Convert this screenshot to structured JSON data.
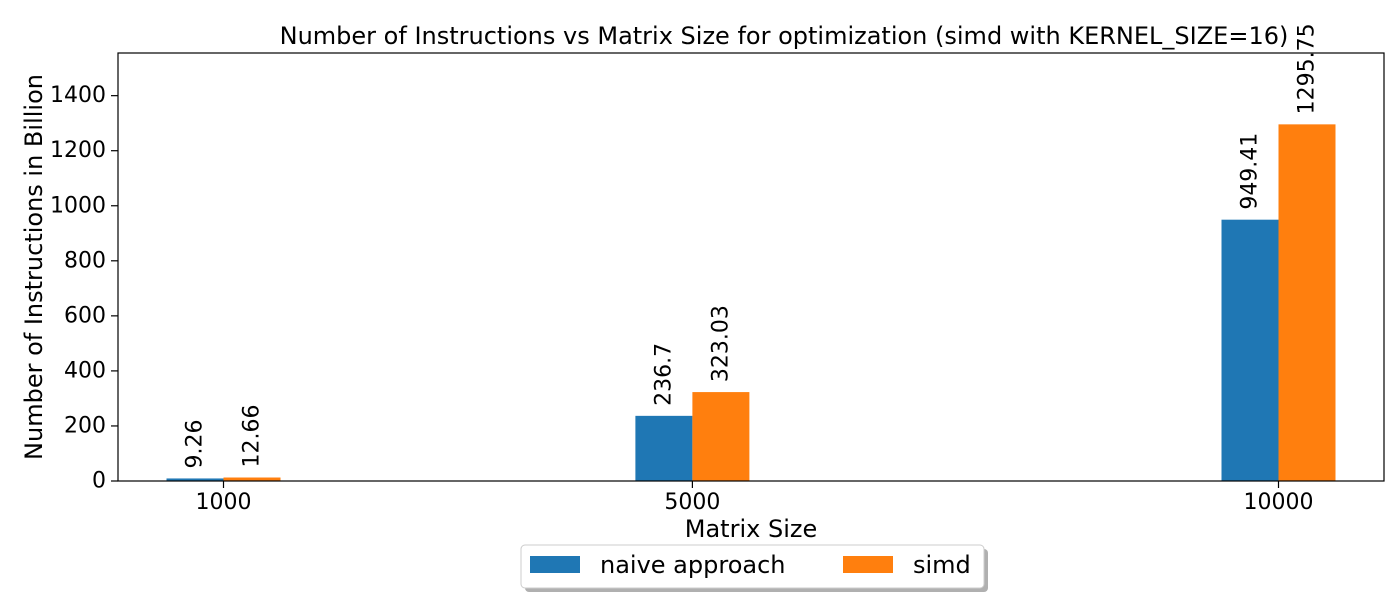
{
  "chart_data": {
    "type": "bar",
    "title": "Number of Instructions vs Matrix Size for optimization (simd with KERNEL_SIZE=16)",
    "xlabel": "Matrix Size",
    "ylabel": "Number of Instructions in Billion",
    "x": [
      1000,
      5000,
      10000
    ],
    "categories": [
      "1000",
      "5000",
      "10000"
    ],
    "series": [
      {
        "name": "naive approach",
        "values": [
          9.26,
          236.7,
          949.41
        ],
        "color": "#1f77b4"
      },
      {
        "name": "simd",
        "values": [
          12.66,
          323.03,
          1295.75
        ],
        "color": "#ff7f0e"
      }
    ],
    "data_labels": {
      "naive approach": [
        "9.26",
        "236.7",
        "949.41"
      ],
      "simd": [
        "12.66",
        "323.03",
        "1295.75"
      ]
    },
    "xlim": [
      100,
      10900
    ],
    "ylim": [
      0,
      1555
    ],
    "yticks": [
      0,
      200,
      400,
      600,
      800,
      1000,
      1200,
      1400
    ],
    "grid": false,
    "legend_position": "bottom-center"
  }
}
